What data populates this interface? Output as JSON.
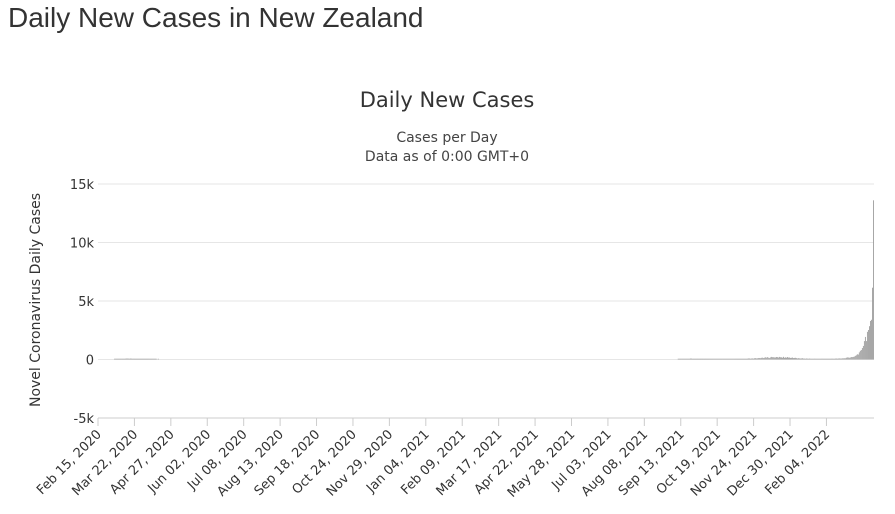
{
  "page": {
    "title": "Daily New Cases in New Zealand"
  },
  "colors": {
    "bar": "#9e9e9e",
    "grid": "#e6e6e6",
    "axis": "#cccccc",
    "text": "#333333"
  },
  "chart_data": {
    "type": "bar",
    "title": "Daily New Cases",
    "subtitle_lines": [
      "Cases per Day",
      "Data as of 0:00 GMT+0"
    ],
    "xlabel": "",
    "ylabel": "Novel Coronavirus Daily Cases",
    "ylim": [
      -5000,
      15000
    ],
    "y_ticks": [
      {
        "value": -5000,
        "label": "-5k"
      },
      {
        "value": 0,
        "label": "0"
      },
      {
        "value": 5000,
        "label": "5k"
      },
      {
        "value": 10000,
        "label": "10k"
      },
      {
        "value": 15000,
        "label": "15k"
      }
    ],
    "x_start": "Feb 15, 2020",
    "x_end": "Mar 06, 2022",
    "x_ticks": [
      "Feb 15, 2020",
      "Mar 22, 2020",
      "Apr 27, 2020",
      "Jun 02, 2020",
      "Jul 08, 2020",
      "Aug 13, 2020",
      "Sep 18, 2020",
      "Oct 24, 2020",
      "Nov 29, 2020",
      "Jan 04, 2021",
      "Feb 09, 2021",
      "Mar 17, 2021",
      "Apr 22, 2021",
      "May 28, 2021",
      "Jul 03, 2021",
      "Aug 08, 2021",
      "Sep 13, 2021",
      "Oct 19, 2021",
      "Nov 24, 2021",
      "Dec 30, 2021",
      "Feb 04, 2022"
    ],
    "grid": true,
    "legend": "none",
    "x_step_days": 36,
    "series": [
      {
        "values": [
          0,
          0,
          0,
          0,
          0,
          0,
          0,
          0,
          0,
          0,
          0,
          0,
          0,
          0,
          0,
          0,
          1,
          2,
          3,
          5,
          8,
          10,
          14,
          20,
          36,
          40,
          46,
          78,
          85,
          83,
          76,
          63,
          89,
          61,
          58,
          71,
          50,
          67,
          44,
          34,
          29,
          20,
          19,
          15,
          8,
          17,
          13,
          9,
          5,
          3,
          6,
          4,
          2,
          2,
          3,
          5,
          1,
          1,
          0,
          1,
          0,
          0,
          0,
          0,
          0,
          0,
          0,
          0,
          0,
          0,
          0,
          0,
          0,
          0,
          0,
          0,
          0,
          0,
          0,
          0,
          0,
          0,
          0,
          0,
          0,
          0,
          0,
          0,
          0,
          0,
          0,
          0,
          0,
          0,
          0,
          0,
          0,
          0,
          0,
          0,
          0,
          0,
          0,
          0,
          0,
          0,
          0,
          0,
          0,
          0,
          0,
          0,
          0,
          0,
          0,
          0,
          0,
          0,
          0,
          0,
          0,
          0,
          0,
          0,
          0,
          0,
          0,
          0,
          0,
          0,
          0,
          0,
          0,
          0,
          0,
          0,
          0,
          0,
          0,
          0,
          0,
          0,
          0,
          0,
          0,
          0,
          0,
          0,
          0,
          0,
          0,
          0,
          0,
          0,
          0,
          0,
          0,
          0,
          0,
          0,
          0,
          0,
          0,
          0,
          0,
          0,
          0,
          0,
          0,
          0,
          0,
          0,
          0,
          0,
          0,
          0,
          0,
          0,
          0,
          0,
          0,
          0,
          0,
          0,
          0,
          0,
          0,
          0,
          0,
          0,
          0,
          0,
          0,
          0,
          0,
          0,
          0,
          0,
          0,
          0,
          0,
          0,
          0,
          0,
          0,
          0,
          0,
          0,
          0,
          0,
          0,
          0,
          0,
          0,
          0,
          0,
          0,
          0,
          0,
          0,
          0,
          0,
          0,
          0,
          0,
          0,
          0,
          0,
          0,
          0,
          0,
          0,
          0,
          0,
          0,
          0,
          0,
          0,
          0,
          0,
          0,
          0,
          0,
          0,
          0,
          0,
          0,
          0,
          0,
          0,
          0,
          0,
          0,
          0,
          0,
          0,
          0,
          0,
          0,
          0,
          0,
          0,
          0,
          0,
          0,
          0,
          0,
          0,
          0,
          0,
          0,
          0,
          0,
          0,
          0,
          0,
          0,
          0,
          0,
          0,
          0,
          0,
          0,
          0,
          0,
          0,
          0,
          0,
          0,
          0,
          0,
          0,
          0,
          0,
          0,
          0,
          0,
          0,
          0,
          0,
          0,
          0,
          0,
          0,
          0,
          0,
          0,
          0,
          0,
          0,
          0,
          0,
          0,
          0,
          0,
          0,
          0,
          0,
          0,
          0,
          0,
          0,
          0,
          0,
          0,
          0,
          0,
          0,
          0,
          0,
          0,
          0,
          0,
          0,
          0,
          0,
          0,
          0,
          0,
          0,
          0,
          0,
          0,
          0,
          0,
          0,
          0,
          0,
          0,
          0,
          0,
          0,
          0,
          0,
          0,
          0,
          0,
          0,
          0,
          0,
          0,
          0,
          0,
          0,
          0,
          0,
          0,
          0,
          0,
          0,
          0,
          0,
          0,
          0,
          0,
          0,
          0,
          0,
          0,
          0,
          0,
          0,
          0,
          0,
          0,
          0,
          0,
          0,
          0,
          0,
          0,
          0,
          0,
          0,
          0,
          0,
          0,
          0,
          0,
          0,
          0,
          0,
          0,
          0,
          0,
          0,
          0,
          0,
          0,
          0,
          0,
          0,
          0,
          0,
          0,
          0,
          0,
          0,
          0,
          0,
          0,
          0,
          0,
          0,
          0,
          0,
          0,
          0,
          0,
          0,
          0,
          0,
          0,
          0,
          0,
          0,
          0,
          0,
          0,
          0,
          0,
          0,
          0,
          0,
          0,
          0,
          0,
          0,
          0,
          0,
          0,
          0,
          0,
          0,
          0,
          0,
          0,
          0,
          0,
          0,
          0,
          0,
          0,
          0,
          0,
          0,
          0,
          0,
          0,
          0,
          0,
          0,
          0,
          0,
          0,
          0,
          0,
          0,
          0,
          0,
          0,
          0,
          0,
          0,
          0,
          0,
          0,
          0,
          0,
          0,
          0,
          0,
          0,
          0,
          0,
          0,
          0,
          0,
          0,
          0,
          0,
          0,
          0,
          0,
          0,
          0,
          0,
          0,
          0,
          0,
          0,
          0,
          0,
          0,
          0,
          0,
          0,
          0,
          0,
          0,
          0,
          0,
          0,
          0,
          0,
          0,
          0,
          0,
          0,
          0,
          0,
          0,
          0,
          0,
          0,
          0,
          0,
          0,
          0,
          0,
          0,
          0,
          0,
          0,
          0,
          0,
          0,
          0,
          0,
          0,
          0,
          0,
          0,
          0,
          0,
          0,
          0,
          0,
          0,
          0,
          0,
          0,
          0,
          0,
          0,
          0,
          0,
          0,
          0,
          0,
          0,
          0,
          0,
          1,
          10,
          11,
          21,
          41,
          62,
          35,
          49,
          21,
          53,
          49,
          20,
          83,
          81,
          33,
          52,
          45,
          22,
          26,
          20,
          18,
          11,
          24,
          19,
          25,
          29,
          17,
          14,
          9,
          8,
          13,
          18,
          11,
          6,
          8,
          10,
          8,
          15,
          5,
          7,
          10,
          11,
          13,
          6,
          19,
          11,
          8,
          26,
          14,
          7,
          29,
          32,
          18,
          24,
          19,
          40,
          30,
          39,
          29,
          40,
          39,
          42,
          60,
          33,
          56,
          34,
          62,
          47,
          64,
          79,
          98,
          71,
          73,
          102,
          62,
          94,
          125,
          93,
          94,
          120,
          130,
          111,
          134,
          162,
          125,
          142,
          196,
          147,
          206,
          160,
          125,
          173,
          222,
          200,
          193,
          178,
          172,
          215,
          201,
          165,
          222,
          190,
          185,
          153,
          227,
          148,
          181,
          156,
          205,
          163,
          168,
          136,
          144,
          164,
          124,
          135,
          145,
          119,
          91,
          114,
          96,
          85,
          95,
          110,
          77,
          81,
          69,
          89,
          74,
          68,
          84,
          55,
          61,
          52,
          65,
          73,
          47,
          58,
          39,
          45,
          60,
          51,
          71,
          44,
          42,
          63,
          49,
          52,
          67,
          38,
          45,
          66,
          74,
          55,
          68,
          54,
          91,
          65,
          79,
          92,
          88,
          76,
          101,
          95,
          110,
          97,
          143,
          180,
          174,
          147,
          163,
          209,
          205,
          221,
          243,
          306,
          361,
          446,
          422,
          613,
          743,
          810,
          981,
          1160,
          1573,
          1929,
          1573,
          2365,
          2522,
          2846,
          3297,
          3396,
          6137,
          13606
        ]
      }
    ]
  }
}
